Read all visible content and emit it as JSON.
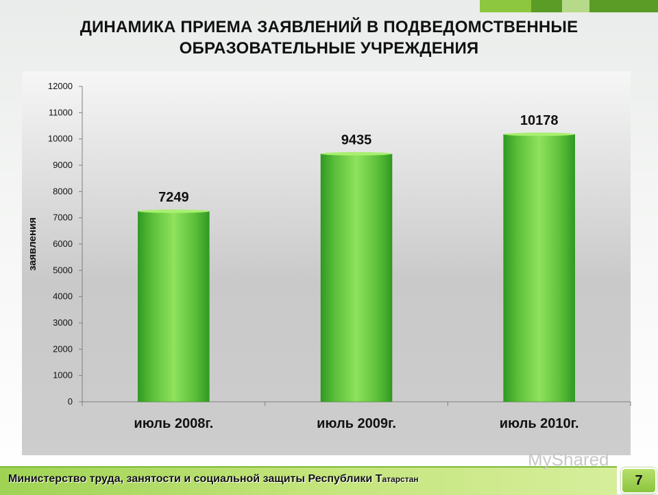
{
  "slide": {
    "title_line1": "ДИНАМИКА ПРИЕМА ЗАЯВЛЕНИЙ В ПОДВЕДОМСТВЕННЫЕ",
    "title_line2": "ОБРАЗОВАТЕЛЬНЫЕ УЧРЕЖДЕНИЯ",
    "footer_main": "Министерство труда, занятости и социальной защиты Республики Т",
    "footer_small": "атарстан",
    "page_number": "7",
    "watermark": "MyShared"
  },
  "colors": {
    "bar_green": "#5cbf3a",
    "bar_green_dark": "#2f9a22",
    "top_bar_1": "#8dc63f",
    "top_bar_2": "#5a9c25",
    "footer_green": "#9fd354"
  },
  "chart_data": {
    "type": "bar",
    "title": "",
    "xlabel": "",
    "ylabel": "заявления",
    "categories": [
      "июль 2008г.",
      "июль 2009г.",
      "июль 2010г."
    ],
    "values": [
      7249,
      9435,
      10178
    ],
    "data_labels": [
      "7249",
      "9435",
      "10178"
    ],
    "ylim": [
      0,
      12000
    ],
    "yticks": [
      0,
      1000,
      2000,
      3000,
      4000,
      5000,
      6000,
      7000,
      8000,
      9000,
      10000,
      11000,
      12000
    ],
    "grid": false,
    "legend": "none"
  }
}
